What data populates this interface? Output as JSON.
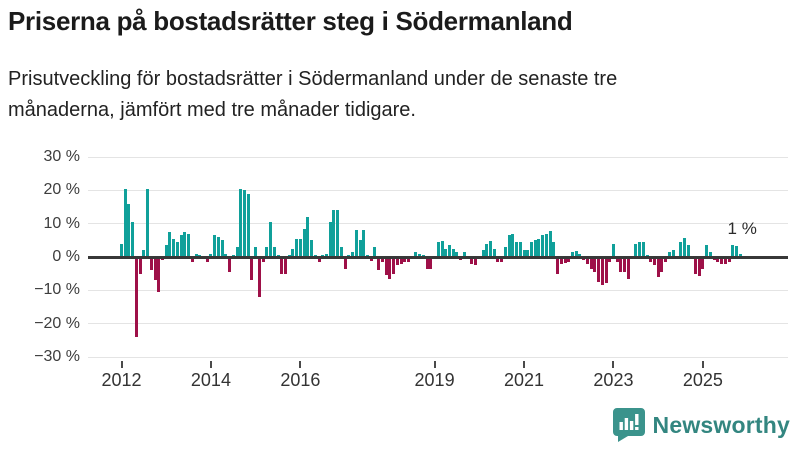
{
  "header": {
    "title": "Priserna på bostadsrätter steg i Södermanland",
    "subtitle_lines": [
      "Prisutveckling för bostadsrätter i Södermanland under de senaste tre",
      "månaderna, jämfört med tre månader tidigare."
    ]
  },
  "footer": {
    "brand": "Newsworthy"
  },
  "chart_data": {
    "type": "bar",
    "title": "Priserna på bostadsrätter steg i Södermanland",
    "subtitle": "Prisutveckling för bostadsrätter i Södermanland under de senaste tre månaderna, jämfört med tre månader tidigare.",
    "unit": "%",
    "ylim": [
      -30,
      30
    ],
    "grid": true,
    "x_start": "2012-01",
    "x_end": "2025-11",
    "x_frequency": "monthly",
    "yticks": [
      {
        "value": 30,
        "label": "30 %"
      },
      {
        "value": 20,
        "label": "20 %"
      },
      {
        "value": 10,
        "label": "10 %"
      },
      {
        "value": 0,
        "label": "0 %"
      },
      {
        "value": -10,
        "label": "−10 %"
      },
      {
        "value": -20,
        "label": "−20 %"
      },
      {
        "value": -30,
        "label": "−30 %"
      }
    ],
    "xticks": [
      2012,
      2014,
      2016,
      2019,
      2021,
      2023,
      2025
    ],
    "annotation": {
      "text": "1 %",
      "target": "latest value"
    },
    "colors": {
      "positive": "#10a09a",
      "negative": "#9e1048",
      "zero_line": "#383838",
      "grid": "#e4e4e4"
    },
    "values": [
      4,
      20.5,
      16,
      10.5,
      -24,
      -5,
      2,
      20.5,
      -4,
      -7,
      -10.5,
      -1,
      3.5,
      7.5,
      5.5,
      4.5,
      6.5,
      7.5,
      7,
      -1.5,
      1,
      0.5,
      0.3,
      -1.5,
      1,
      6.5,
      6,
      5,
      1,
      -4.5,
      0.5,
      3,
      20.5,
      20,
      19,
      -7,
      3,
      -12,
      -1.5,
      3,
      10.5,
      3,
      0.5,
      -5,
      -5,
      0.5,
      2.5,
      5.5,
      5.5,
      8.5,
      12,
      5,
      0.5,
      -1.5,
      0.5,
      1,
      10.5,
      14,
      14,
      3,
      -3.5,
      0.5,
      1.5,
      8,
      5,
      8,
      0.5,
      -1.2,
      3,
      -4,
      -1.5,
      -5.5,
      -6.5,
      -5,
      -2.5,
      -2,
      -1.5,
      -1.5,
      -0.5,
      1.5,
      1,
      0.5,
      -3.5,
      -3.7,
      0.3,
      4.5,
      4.8,
      2.5,
      3.5,
      2.5,
      1.5,
      -1,
      1.5,
      -0.5,
      -2,
      -2.5,
      0.3,
      2,
      4,
      4.8,
      2.5,
      -1.5,
      -1.5,
      3,
      6.5,
      7,
      4.5,
      4.5,
      2,
      2,
      4.5,
      5,
      5.5,
      6.5,
      7,
      7.8,
      4.5,
      -5,
      -2,
      -1.8,
      -1.5,
      1.5,
      1.8,
      1,
      -1,
      -2,
      -3.5,
      -4.5,
      -7.5,
      -8.5,
      -7.8,
      -1.5,
      3.8,
      -1.5,
      -4.5,
      -4.5,
      -6.5,
      0.3,
      4,
      4.5,
      4.5,
      0.5,
      -1.5,
      -2.5,
      -6,
      -4.5,
      -1.5,
      1.5,
      2,
      -0.5,
      4.5,
      5.8,
      3.5,
      -0.5,
      -5,
      -5.8,
      -3.5,
      3.5,
      1.5,
      -1,
      -1.5,
      -2,
      -2.2,
      -1.5,
      3.5,
      3.3,
      1
    ]
  }
}
